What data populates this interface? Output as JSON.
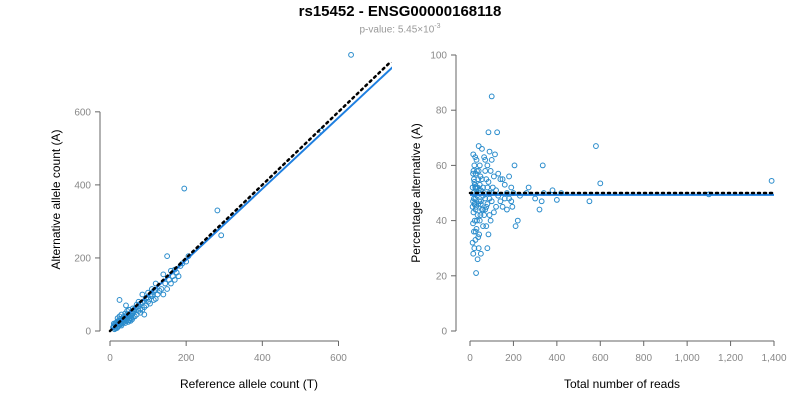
{
  "title": "rs15452 - ENSG00000168118",
  "subtitle": {
    "prefix": "p-value: 5.45×10",
    "exponent": "-3"
  },
  "colors": {
    "points": "#2a8ccc",
    "fit_line": "#1e7fe0",
    "reference_line": "#000000"
  },
  "chart_data": [
    {
      "type": "scatter",
      "xlabel": "Reference allele count (T)",
      "ylabel": "Alternative allele count (A)",
      "xlim": [
        0,
        730
      ],
      "ylim": [
        0,
        720
      ],
      "xticks": [
        0,
        200,
        400,
        600
      ],
      "yticks": [
        0,
        200,
        400,
        600
      ],
      "grid": false,
      "fit_line": {
        "x": [
          0,
          750
        ],
        "y": [
          0,
          730
        ],
        "style": "solid"
      },
      "reference_line": {
        "x": [
          0,
          750
        ],
        "y": [
          0,
          750
        ],
        "style": "dotted"
      },
      "points": [
        [
          633,
          756
        ],
        [
          555,
          548
        ],
        [
          282,
          330
        ],
        [
          195,
          390
        ],
        [
          150,
          205
        ],
        [
          292,
          262
        ],
        [
          206,
          205
        ],
        [
          190,
          185
        ],
        [
          170,
          168
        ],
        [
          160,
          165
        ],
        [
          140,
          155
        ],
        [
          120,
          130
        ],
        [
          110,
          115
        ],
        [
          100,
          105
        ],
        [
          95,
          90
        ],
        [
          85,
          100
        ],
        [
          75,
          80
        ],
        [
          70,
          72
        ],
        [
          130,
          110
        ],
        [
          120,
          88
        ],
        [
          105,
          75
        ],
        [
          90,
          65
        ],
        [
          80,
          60
        ],
        [
          65,
          55
        ],
        [
          60,
          62
        ],
        [
          55,
          50
        ],
        [
          50,
          58
        ],
        [
          45,
          45
        ],
        [
          42,
          70
        ],
        [
          38,
          40
        ],
        [
          35,
          30
        ],
        [
          30,
          45
        ],
        [
          25,
          85
        ],
        [
          28,
          33
        ],
        [
          22,
          28
        ],
        [
          20,
          20
        ],
        [
          18,
          25
        ],
        [
          15,
          15
        ],
        [
          12,
          18
        ],
        [
          10,
          12
        ],
        [
          8,
          10
        ],
        [
          14,
          8
        ],
        [
          18,
          12
        ],
        [
          25,
          18
        ],
        [
          30,
          22
        ],
        [
          35,
          25
        ],
        [
          40,
          30
        ],
        [
          45,
          35
        ],
        [
          50,
          40
        ],
        [
          55,
          42
        ],
        [
          60,
          48
        ],
        [
          65,
          40
        ],
        [
          70,
          45
        ],
        [
          75,
          55
        ],
        [
          80,
          50
        ],
        [
          85,
          58
        ],
        [
          90,
          45
        ],
        [
          95,
          70
        ],
        [
          100,
          80
        ],
        [
          110,
          95
        ],
        [
          115,
          85
        ],
        [
          125,
          100
        ],
        [
          135,
          115
        ],
        [
          145,
          130
        ],
        [
          155,
          140
        ],
        [
          165,
          150
        ],
        [
          175,
          160
        ],
        [
          185,
          178
        ],
        [
          200,
          190
        ],
        [
          180,
          150
        ],
        [
          170,
          140
        ],
        [
          160,
          130
        ],
        [
          150,
          115
        ],
        [
          140,
          100
        ],
        [
          20,
          35
        ],
        [
          25,
          40
        ],
        [
          30,
          30
        ],
        [
          35,
          38
        ],
        [
          40,
          48
        ],
        [
          45,
          55
        ],
        [
          50,
          30
        ],
        [
          55,
          35
        ],
        [
          60,
          38
        ],
        [
          65,
          60
        ],
        [
          70,
          65
        ],
        [
          75,
          68
        ],
        [
          80,
          75
        ],
        [
          85,
          78
        ],
        [
          90,
          82
        ],
        [
          95,
          88
        ],
        [
          100,
          92
        ],
        [
          105,
          98
        ],
        [
          110,
          100
        ],
        [
          115,
          110
        ],
        [
          120,
          112
        ],
        [
          10,
          20
        ],
        [
          12,
          5
        ],
        [
          15,
          22
        ],
        [
          18,
          8
        ],
        [
          20,
          10
        ],
        [
          22,
          15
        ],
        [
          24,
          26
        ],
        [
          26,
          20
        ],
        [
          28,
          18
        ],
        [
          30,
          15
        ],
        [
          32,
          28
        ],
        [
          34,
          22
        ],
        [
          36,
          32
        ],
        [
          38,
          26
        ],
        [
          40,
          22
        ],
        [
          42,
          34
        ],
        [
          44,
          28
        ],
        [
          46,
          38
        ],
        [
          48,
          25
        ],
        [
          50,
          45
        ],
        [
          52,
          36
        ],
        [
          54,
          28
        ],
        [
          56,
          42
        ],
        [
          58,
          32
        ],
        [
          60,
          55
        ]
      ]
    },
    {
      "type": "scatter",
      "xlabel": "Total number of reads",
      "ylabel": "Percentage alternative (A)",
      "xlim": [
        0,
        1400
      ],
      "ylim": [
        0,
        100
      ],
      "xticks": [
        0,
        200,
        400,
        600,
        800,
        1000,
        1200,
        1400
      ],
      "xtick_labels": [
        "0",
        "200",
        "400",
        "600",
        "800",
        "1,000",
        "1,200",
        "1,400"
      ],
      "yticks": [
        0,
        20,
        40,
        60,
        80,
        100
      ],
      "grid": false,
      "fit_line": {
        "x": [
          0,
          1400
        ],
        "y": [
          49.3,
          49.3
        ],
        "style": "solid"
      },
      "reference_line": {
        "x": [
          0,
          1400
        ],
        "y": [
          50,
          50
        ],
        "style": "dotted"
      },
      "points": [
        [
          1389,
          54.4
        ],
        [
          1100,
          49.5
        ],
        [
          600,
          53.5
        ],
        [
          580,
          67
        ],
        [
          550,
          47
        ],
        [
          420,
          50
        ],
        [
          400,
          47.5
        ],
        [
          380,
          51
        ],
        [
          340,
          50
        ],
        [
          335,
          60
        ],
        [
          330,
          47
        ],
        [
          320,
          44
        ],
        [
          300,
          48
        ],
        [
          270,
          52
        ],
        [
          260,
          50
        ],
        [
          230,
          49
        ],
        [
          220,
          40
        ],
        [
          210,
          38
        ],
        [
          205,
          60
        ],
        [
          200,
          50
        ],
        [
          195,
          45
        ],
        [
          190,
          52
        ],
        [
          180,
          48
        ],
        [
          170,
          50
        ],
        [
          160,
          53
        ],
        [
          150,
          55
        ],
        [
          140,
          47
        ],
        [
          130,
          57
        ],
        [
          125,
          72
        ],
        [
          120,
          45
        ],
        [
          115,
          64
        ],
        [
          110,
          56
        ],
        [
          100,
          85
        ],
        [
          100,
          62
        ],
        [
          95,
          40
        ],
        [
          90,
          50
        ],
        [
          90,
          65
        ],
        [
          85,
          72
        ],
        [
          85,
          35
        ],
        [
          80,
          60
        ],
        [
          80,
          30
        ],
        [
          75,
          45
        ],
        [
          75,
          55
        ],
        [
          70,
          48
        ],
        [
          70,
          58
        ],
        [
          65,
          42
        ],
        [
          65,
          63
        ],
        [
          60,
          38
        ],
        [
          60,
          52
        ],
        [
          55,
          44
        ],
        [
          55,
          66
        ],
        [
          50,
          28
        ],
        [
          50,
          47
        ],
        [
          48,
          56
        ],
        [
          45,
          40
        ],
        [
          45,
          60
        ],
        [
          42,
          35
        ],
        [
          42,
          50
        ],
        [
          40,
          67
        ],
        [
          40,
          30
        ],
        [
          38,
          46
        ],
        [
          38,
          55
        ],
        [
          35,
          26
        ],
        [
          35,
          42
        ],
        [
          32,
          58
        ],
        [
          32,
          49
        ],
        [
          30,
          37
        ],
        [
          30,
          62
        ],
        [
          28,
          21
        ],
        [
          28,
          52
        ],
        [
          26,
          44
        ],
        [
          26,
          57
        ],
        [
          25,
          33
        ],
        [
          25,
          48
        ],
        [
          24,
          63
        ],
        [
          22,
          40
        ],
        [
          22,
          53
        ],
        [
          20,
          30
        ],
        [
          20,
          46
        ],
        [
          20,
          60
        ],
        [
          18,
          36
        ],
        [
          18,
          55
        ],
        [
          16,
          43
        ],
        [
          16,
          50
        ],
        [
          15,
          28
        ],
        [
          15,
          64
        ],
        [
          14,
          39
        ],
        [
          14,
          57
        ],
        [
          12,
          45
        ],
        [
          12,
          32
        ],
        [
          110,
          43
        ],
        [
          105,
          52
        ],
        [
          100,
          47
        ],
        [
          95,
          58
        ],
        [
          90,
          42
        ],
        [
          85,
          54
        ],
        [
          80,
          46
        ],
        [
          75,
          38
        ],
        [
          70,
          62
        ],
        [
          65,
          50
        ],
        [
          60,
          44
        ],
        [
          55,
          55
        ],
        [
          50,
          51
        ],
        [
          48,
          42
        ],
        [
          45,
          53
        ],
        [
          42,
          47
        ],
        [
          40,
          58
        ],
        [
          38,
          34
        ],
        [
          35,
          52
        ],
        [
          32,
          40
        ],
        [
          30,
          50
        ],
        [
          28,
          45
        ],
        [
          26,
          36
        ],
        [
          24,
          52
        ],
        [
          22,
          46
        ],
        [
          20,
          54
        ],
        [
          18,
          48
        ],
        [
          16,
          58
        ],
        [
          14,
          47
        ],
        [
          12,
          52
        ],
        [
          120,
          51
        ],
        [
          130,
          49
        ],
        [
          140,
          55
        ],
        [
          150,
          45
        ],
        [
          160,
          48
        ],
        [
          170,
          44
        ],
        [
          180,
          56
        ],
        [
          190,
          47
        ],
        [
          100,
          50
        ],
        [
          90,
          48
        ],
        [
          80,
          52
        ],
        [
          70,
          44
        ],
        [
          60,
          49
        ],
        [
          50,
          46
        ],
        [
          40,
          51
        ]
      ]
    }
  ]
}
